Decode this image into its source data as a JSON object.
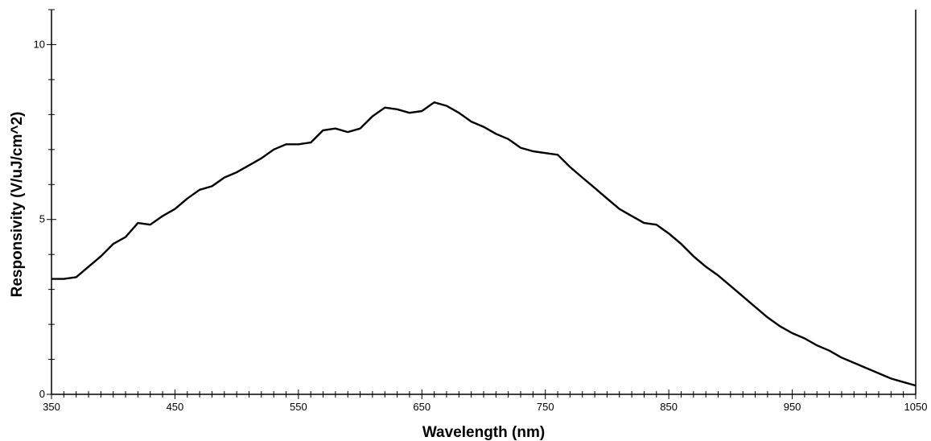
{
  "chart_data": {
    "type": "line",
    "title": "",
    "xlabel": "Wavelength (nm)",
    "ylabel": "Responsivity (V/uJ/cm^2)",
    "xlim": [
      350,
      1050
    ],
    "ylim": [
      0,
      11
    ],
    "x_ticks": [
      350,
      450,
      550,
      650,
      750,
      850,
      950,
      1050
    ],
    "y_ticks": [
      0,
      5,
      10
    ],
    "grid": false,
    "legend": "none",
    "color": "#000000",
    "series": [
      {
        "x": [
          350,
          360,
          370,
          380,
          390,
          400,
          410,
          420,
          430,
          440,
          450,
          460,
          470,
          480,
          490,
          500,
          510,
          520,
          530,
          540,
          550,
          560,
          570,
          580,
          590,
          600,
          610,
          620,
          630,
          640,
          650,
          660,
          670,
          680,
          690,
          700,
          710,
          720,
          730,
          740,
          750,
          760,
          770,
          780,
          790,
          800,
          810,
          820,
          830,
          840,
          850,
          860,
          870,
          880,
          890,
          900,
          910,
          920,
          930,
          940,
          950,
          960,
          970,
          980,
          990,
          1000,
          1010,
          1020,
          1030,
          1040,
          1050
        ],
        "y": [
          3.3,
          3.3,
          3.35,
          3.65,
          3.95,
          4.3,
          4.5,
          4.9,
          4.85,
          5.1,
          5.3,
          5.6,
          5.85,
          5.95,
          6.2,
          6.35,
          6.55,
          6.75,
          7.0,
          7.15,
          7.15,
          7.2,
          7.55,
          7.6,
          7.5,
          7.6,
          7.95,
          8.2,
          8.15,
          8.05,
          8.1,
          8.35,
          8.25,
          8.05,
          7.8,
          7.65,
          7.45,
          7.3,
          7.05,
          6.95,
          6.9,
          6.85,
          6.5,
          6.2,
          5.9,
          5.6,
          5.3,
          5.1,
          4.9,
          4.85,
          4.6,
          4.3,
          3.95,
          3.65,
          3.4,
          3.1,
          2.8,
          2.5,
          2.2,
          1.95,
          1.75,
          1.6,
          1.4,
          1.25,
          1.05,
          0.9,
          0.75,
          0.6,
          0.45,
          0.35,
          0.25
        ]
      }
    ]
  }
}
